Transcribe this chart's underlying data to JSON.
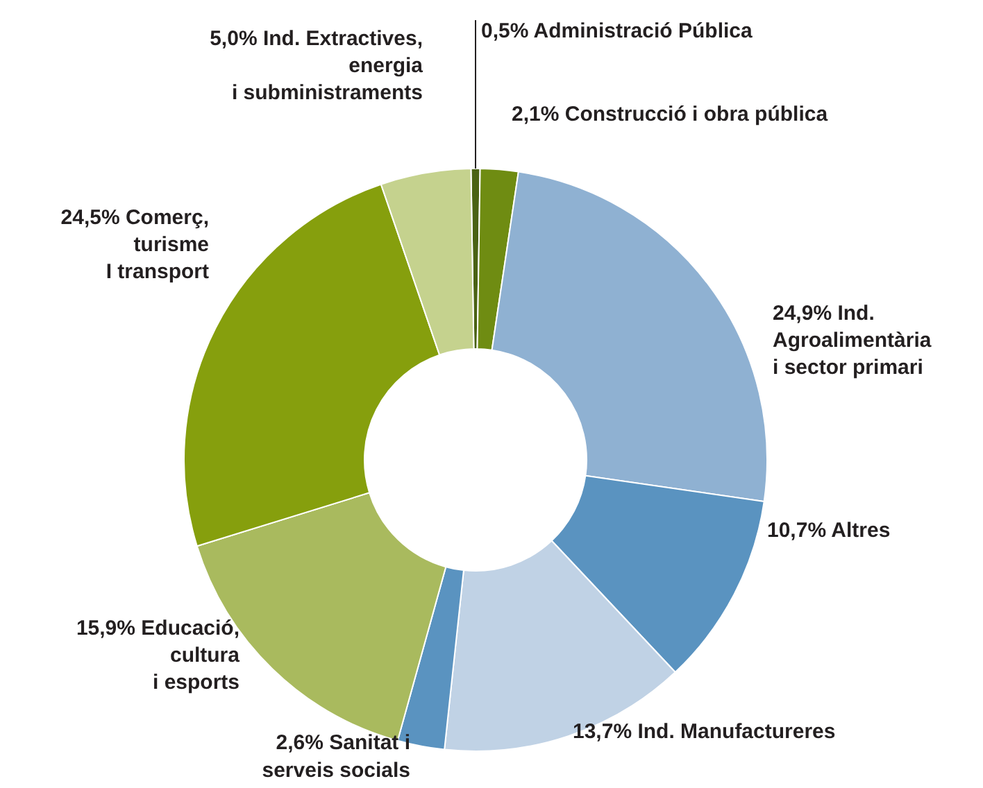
{
  "chart_data": {
    "type": "donut",
    "categories": [
      "Administració Pública",
      "Construcció i obra pública",
      "Ind.\nAgroalimentària\ni sector primari",
      "Altres",
      "Ind. Manufactureres",
      "Sanitat i\nserveis socials",
      "Educació,\ncultura\ni esports",
      "Comerç,\nturisme\nI transport",
      "Ind. Extractives,\nenergia\ni subministraments"
    ],
    "values": [
      0.5,
      2.1,
      24.9,
      10.7,
      13.7,
      2.6,
      15.9,
      24.5,
      5.0
    ],
    "value_labels": [
      "0,5%",
      "2,1%",
      "24,9%",
      "10,7%",
      "13,7%",
      "2,6%",
      "15,9%",
      "24,5%",
      "5,0%"
    ],
    "colors": [
      "#4a6214",
      "#6f8c12",
      "#8fb1d2",
      "#5a93c0",
      "#c0d2e5",
      "#5a93c0",
      "#a9ba5e",
      "#869f0d",
      "#c5d28e"
    ]
  }
}
